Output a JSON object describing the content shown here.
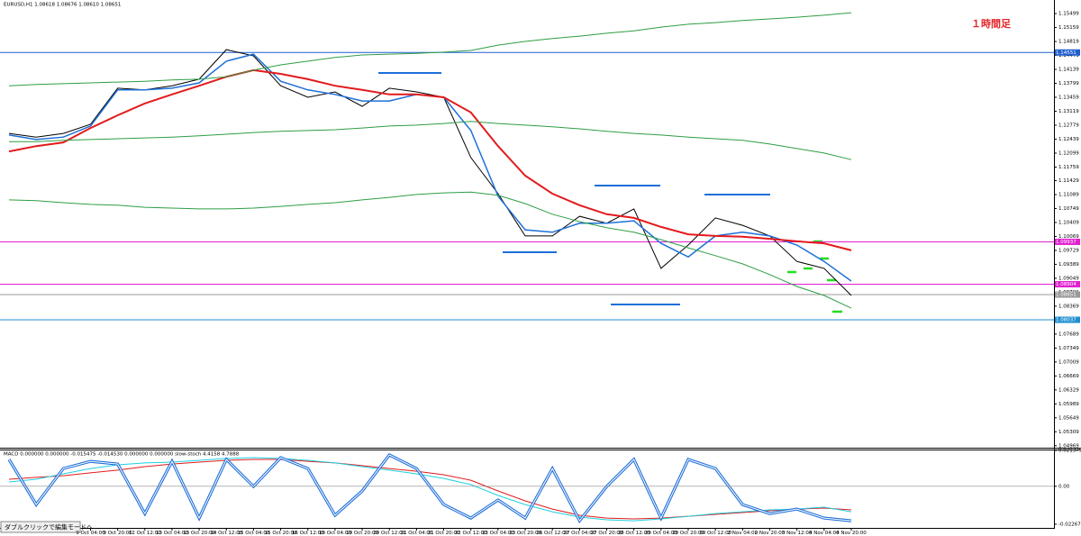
{
  "chart_data": [
    {
      "type": "line",
      "title": "EURUSD,H1  1.08618 1.08676 1.08610 1.08651",
      "annotation": "１時間足",
      "categories": [
        null,
        null,
        null,
        "9 Oct 04:00",
        "9 Oct 20:00",
        "12 Oct 12:00",
        "13 Oct 04:00",
        "13 Oct 20:00",
        "14 Oct 12:00",
        "15 Oct 04:00",
        "15 Oct 20:00",
        "16 Oct 12:00",
        "19 Oct 04:00",
        "19 Oct 20:00",
        "20 Oct 12:00",
        "21 Oct 04:00",
        "21 Oct 20:00",
        "22 Oct 12:00",
        "23 Oct 04:00",
        "23 Oct 20:00",
        "26 Oct 12:00",
        "27 Oct 04:00",
        "27 Oct 20:00",
        "28 Oct 12:00",
        "29 Oct 04:00",
        "29 Oct 20:00",
        "30 Oct 12:00",
        "2 Nov 04:00",
        "2 Nov 20:00",
        "3 Nov 12:00",
        "4 Nov 04:00",
        "4 Nov 20:00"
      ],
      "series": [
        {
          "color": "#000000",
          "values": [
            1.1258,
            1.1249,
            1.1258,
            1.128,
            1.1368,
            1.1364,
            1.1374,
            1.139,
            1.1462,
            1.1447,
            1.1374,
            1.1346,
            1.1359,
            1.1324,
            1.1368,
            1.1359,
            1.1346,
            1.1199,
            1.1111,
            1.1008,
            1.1008,
            1.1056,
            1.1039,
            1.1074,
            1.0929,
            1.0986,
            1.1052,
            1.1034,
            1.1008,
            1.0946,
            1.0929,
            1.0863
          ]
        },
        {
          "color": "#1e6fd9",
          "values": [
            1.1254,
            1.1243,
            1.1249,
            1.1276,
            1.1364,
            1.1364,
            1.1368,
            1.1381,
            1.1434,
            1.1451,
            1.1385,
            1.1364,
            1.1353,
            1.1337,
            1.1337,
            1.1353,
            1.1346,
            1.1265,
            1.1105,
            1.1023,
            1.1017,
            1.1039,
            1.1039,
            1.1045,
            1.099,
            1.0957,
            1.1008,
            1.1017,
            1.1008,
            1.0986,
            1.0946,
            1.0898
          ]
        },
        {
          "color": "#e31a1c",
          "values": [
            1.1214,
            1.1227,
            1.1236,
            1.1271,
            1.1302,
            1.1331,
            1.1353,
            1.1374,
            1.1396,
            1.1412,
            1.1403,
            1.139,
            1.1374,
            1.1364,
            1.1353,
            1.1353,
            1.1346,
            1.1309,
            1.1227,
            1.1155,
            1.1111,
            1.1083,
            1.1061,
            1.1052,
            1.103,
            1.1012,
            1.1008,
            1.1006,
            1.1001,
            1.0995,
            1.099,
            1.0973
          ]
        },
        {
          "color": "#2e9e44",
          "values": [
            1.1374,
            1.1377,
            1.1379,
            1.1381,
            1.1383,
            1.1385,
            1.1388,
            1.139,
            1.1396,
            1.1412,
            1.1425,
            1.1434,
            1.1443,
            1.1449,
            1.1451,
            1.1453,
            1.1456,
            1.146,
            1.1473,
            1.1482,
            1.1489,
            1.1495,
            1.1502,
            1.1508,
            1.1517,
            1.1524,
            1.1528,
            1.1533,
            1.1537,
            1.1541,
            1.1546,
            1.1552
          ]
        },
        {
          "color": "#2e9e44",
          "values": [
            1.1238,
            1.1238,
            1.1241,
            1.1243,
            1.1245,
            1.1247,
            1.1249,
            1.1252,
            1.1256,
            1.126,
            1.1263,
            1.1265,
            1.1267,
            1.1271,
            1.1276,
            1.1278,
            1.1282,
            1.1287,
            1.1282,
            1.1278,
            1.1274,
            1.1269,
            1.1263,
            1.1258,
            1.1254,
            1.1249,
            1.1245,
            1.1241,
            1.1232,
            1.1221,
            1.121,
            1.1194
          ]
        },
        {
          "color": "#2e9e44",
          "values": [
            1.1096,
            1.1094,
            1.1089,
            1.1085,
            1.1083,
            1.1078,
            1.1076,
            1.1074,
            1.1074,
            1.1076,
            1.108,
            1.1085,
            1.1089,
            1.1096,
            1.1102,
            1.1109,
            1.1113,
            1.1115,
            1.1107,
            1.1087,
            1.1061,
            1.1043,
            1.1028,
            1.1017,
            1.0999,
            1.0979,
            1.096,
            1.094,
            1.0914,
            1.0885,
            1.0863,
            1.0832
          ]
        }
      ],
      "hlines": [
        {
          "value": 1.14551,
          "color": "#1f5fd0"
        },
        {
          "value": 1.09937,
          "color": "#e020d0"
        },
        {
          "value": 1.08904,
          "color": "#e020d0"
        },
        {
          "value": 1.08651,
          "color": "#9a9a9a"
        },
        {
          "value": 1.08037,
          "color": "#1f8fd0"
        }
      ],
      "ylim": [
        1.0492,
        1.1583
      ],
      "yticks": [
        1.15499,
        1.15159,
        1.14819,
        1.14479,
        1.14139,
        1.13799,
        1.13459,
        1.13119,
        1.12779,
        1.12439,
        1.12099,
        1.11759,
        1.11429,
        1.11089,
        1.10749,
        1.10409,
        1.10069,
        1.09729,
        1.09389,
        1.09049,
        1.08709,
        1.08369,
        1.08029,
        1.07689,
        1.07349,
        1.07009,
        1.06669,
        1.06329,
        1.05989,
        1.05649,
        1.05309,
        1.04969
      ],
      "grid": false
    },
    {
      "type": "oscillator",
      "title": "MACD 0.000000 0.000000 -0.015475 -0.014530 0.000000 0.000000 slow-stoch 4.4158 4.7888",
      "series": [
        {
          "color": "#e31a1c",
          "values": [
            0.0042,
            0.0053,
            0.0063,
            0.008,
            0.0096,
            0.0117,
            0.0133,
            0.0144,
            0.0155,
            0.016,
            0.016,
            0.0149,
            0.0139,
            0.0123,
            0.0106,
            0.009,
            0.0069,
            0.0036,
            -0.0028,
            -0.0087,
            -0.0136,
            -0.0173,
            -0.019,
            -0.0195,
            -0.019,
            -0.0179,
            -0.0168,
            -0.0157,
            -0.0146,
            -0.0136,
            -0.013,
            -0.0141
          ]
        },
        {
          "color": "#20d0e0",
          "values": [
            0.0026,
            0.0042,
            0.0074,
            0.0106,
            0.0128,
            0.0139,
            0.0144,
            0.0155,
            0.0166,
            0.0171,
            0.0166,
            0.0155,
            0.0139,
            0.0117,
            0.0096,
            0.0074,
            0.0047,
            0.001,
            -0.0055,
            -0.0109,
            -0.0152,
            -0.0184,
            -0.02,
            -0.0206,
            -0.0195,
            -0.0179,
            -0.0163,
            -0.0152,
            -0.0141,
            -0.0136,
            -0.0125,
            -0.0152
          ]
        },
        {
          "color": "#1e6fd9",
          "values": [
            0.016,
            -0.0109,
            0.0106,
            0.0149,
            0.0133,
            -0.0163,
            0.0149,
            -0.019,
            0.016,
            -0.0001,
            0.0171,
            0.0106,
            -0.0173,
            -0.0028,
            0.0187,
            0.0106,
            -0.0109,
            -0.019,
            -0.0082,
            -0.019,
            0.0106,
            -0.0206,
            -0.0001,
            0.016,
            -0.019,
            0.016,
            0.0106,
            -0.0109,
            -0.0163,
            -0.0136,
            -0.019,
            -0.0206
          ]
        }
      ],
      "ylim": [
        -0.0227,
        0.0214
      ],
      "yticks": [
        {
          "value": 0.021379,
          "label": "0.021379"
        },
        {
          "value": 0,
          "label": "0.00"
        },
        {
          "value": -0.02267,
          "label": "-0.02267"
        }
      ],
      "grid": false
    }
  ],
  "ui": {
    "button": "ダブルクリックで編集モードへ"
  }
}
